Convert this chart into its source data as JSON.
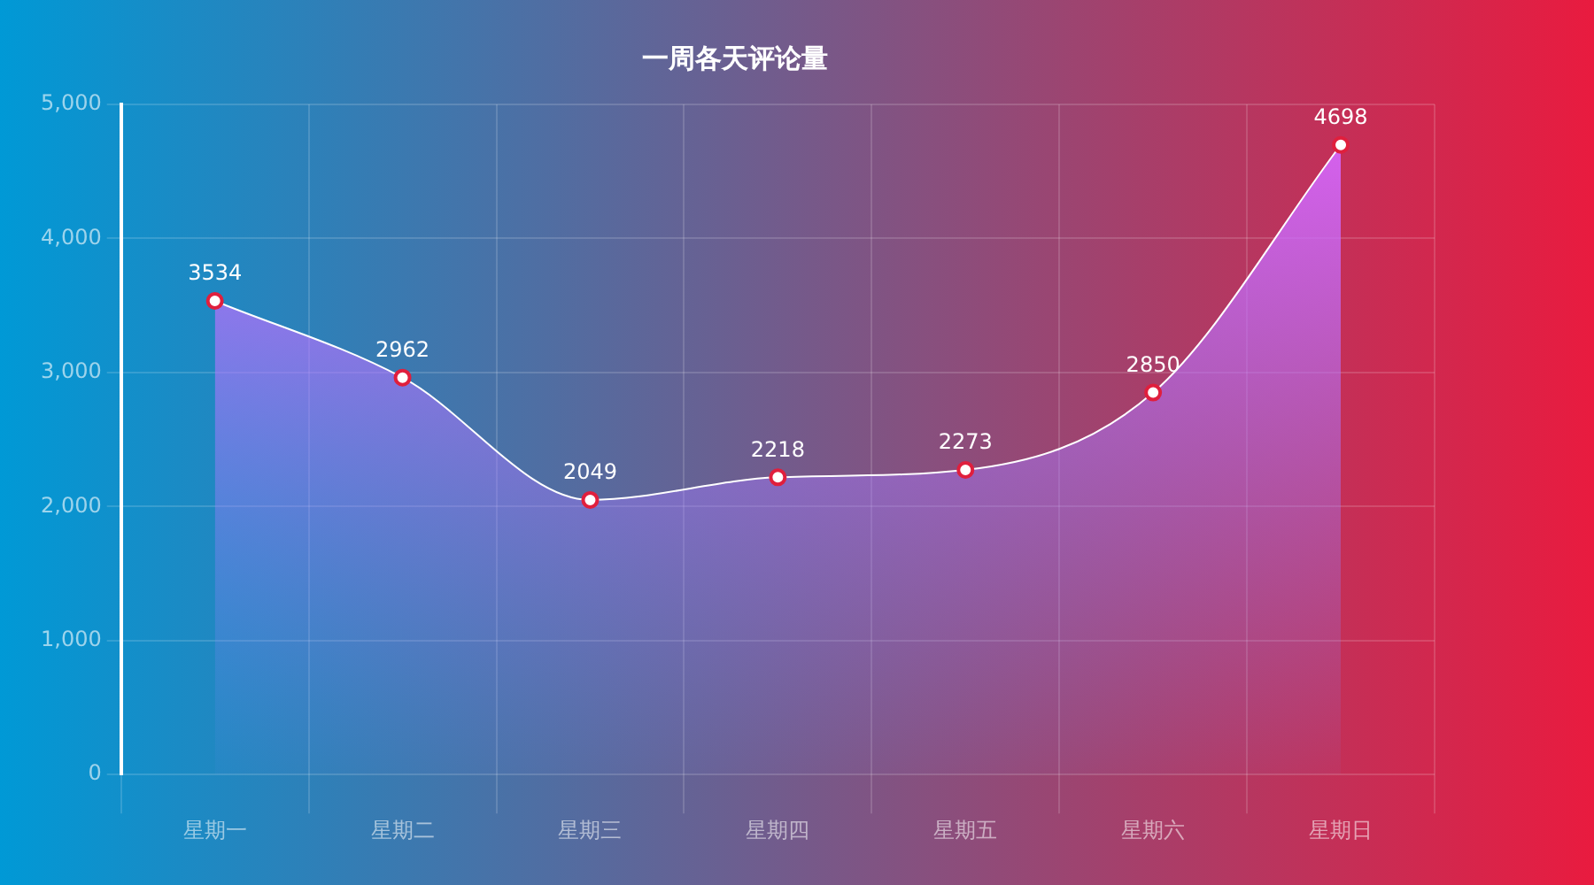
{
  "chart_data": {
    "type": "area",
    "title": "一周各天评论量",
    "categories": [
      "星期一",
      "星期二",
      "星期三",
      "星期四",
      "星期五",
      "星期六",
      "星期日"
    ],
    "series": [
      {
        "color": "#ffffff",
        "values": [
          3534,
          2962,
          2049,
          2218,
          2273,
          2850,
          4698
        ]
      }
    ],
    "ylim": [
      0,
      5000
    ],
    "yticks": [
      {
        "value": 0,
        "label": "0"
      },
      {
        "value": 1000,
        "label": "1,000"
      },
      {
        "value": 2000,
        "label": "2,000"
      },
      {
        "value": 3000,
        "label": "3,000"
      },
      {
        "value": 4000,
        "label": "4,000"
      },
      {
        "value": 5000,
        "label": "5,000"
      }
    ],
    "grid": true,
    "legend": false,
    "marker": "circle",
    "data_labels": true
  }
}
